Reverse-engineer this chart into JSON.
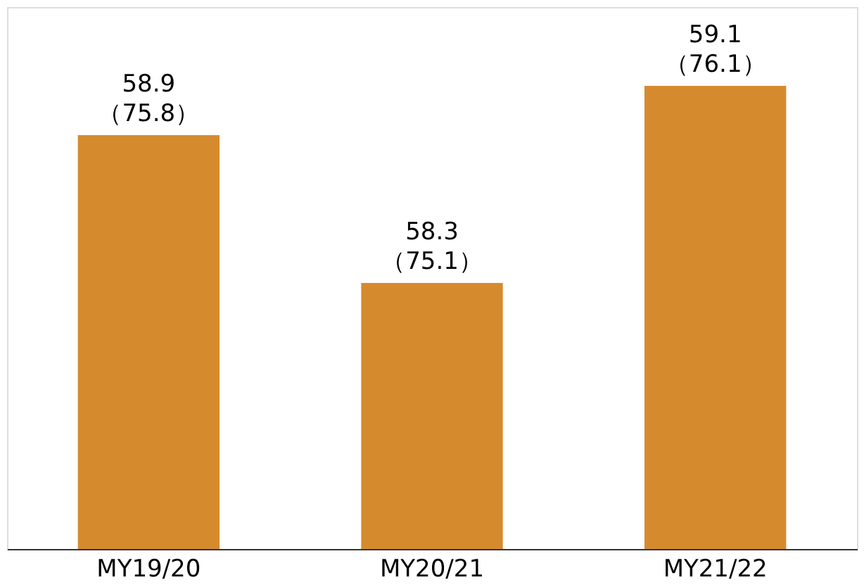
{
  "chart_data": {
    "type": "bar",
    "categories": [
      "MY19/20",
      "MY20/21",
      "MY21/22"
    ],
    "values": [
      58.9,
      58.3,
      59.1
    ],
    "value_labels": [
      "58.9\n（75.8）",
      "58.3\n（75.1）",
      "59.1\n（76.1）"
    ],
    "color": "#d68a2e",
    "ylim": [
      57.22,
      59.42
    ],
    "tick_labels": "x",
    "grid": false
  }
}
